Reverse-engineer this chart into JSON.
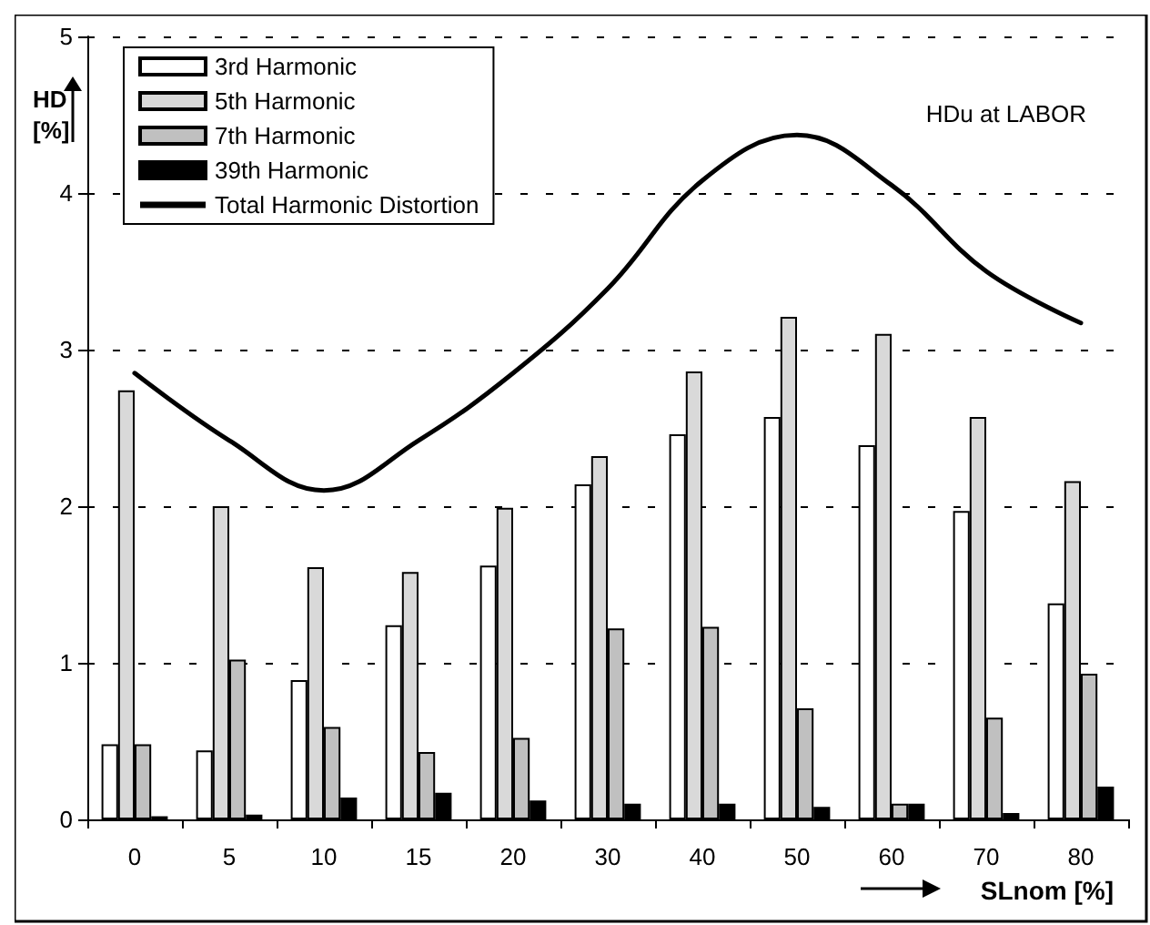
{
  "chart_data": {
    "type": "bar",
    "ylabel": "HD\n[%]",
    "xlabel": "SLnom [%]",
    "annotations": [
      "HDu at LABOR"
    ],
    "categories": [
      "0",
      "5",
      "10",
      "15",
      "20",
      "30",
      "40",
      "50",
      "60",
      "70",
      "80"
    ],
    "series": [
      {
        "name": "3rd Harmonic",
        "color": "#ffffff",
        "values": [
          0.48,
          0.44,
          0.89,
          1.24,
          1.62,
          2.14,
          2.46,
          2.57,
          2.39,
          1.97,
          1.38
        ]
      },
      {
        "name": "5th Harmonic",
        "color": "#d9d9d9",
        "values": [
          2.74,
          2.0,
          1.61,
          1.58,
          1.99,
          2.32,
          2.86,
          3.21,
          3.1,
          2.57,
          2.16
        ]
      },
      {
        "name": "7th Harmonic",
        "color": "#c0c0c0",
        "values": [
          0.48,
          1.02,
          0.59,
          0.43,
          0.52,
          1.22,
          1.23,
          0.71,
          0.1,
          0.65,
          0.93
        ]
      },
      {
        "name": "39th Harmonic",
        "color": "#000000",
        "values": [
          0.02,
          0.03,
          0.14,
          0.17,
          0.12,
          0.1,
          0.1,
          0.08,
          0.1,
          0.04,
          0.21
        ]
      },
      {
        "name": "Total Harmonic Distortion",
        "type": "line",
        "color": "#000000",
        "values": [
          2.85,
          2.42,
          2.1,
          2.42,
          2.85,
          3.39,
          4.08,
          4.37,
          4.05,
          3.5,
          3.17
        ]
      }
    ],
    "ylim": [
      0,
      5
    ],
    "yticks": [
      0,
      1,
      2,
      3,
      4,
      5
    ],
    "grid": "y",
    "legend": "top left",
    "marker": "none"
  }
}
